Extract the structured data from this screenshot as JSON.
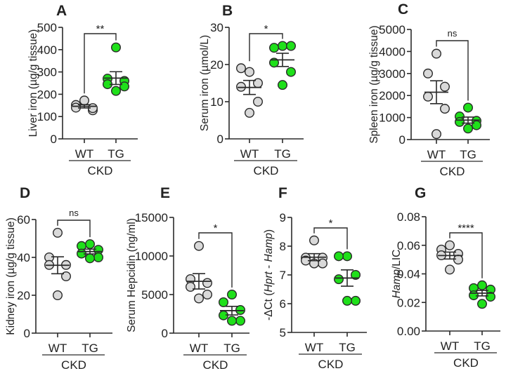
{
  "colors": {
    "wt_fill": "#d9d9d9",
    "tg_fill": "#1fe01a",
    "stroke": "#2a2a2a"
  },
  "chart_data": [
    {
      "type": "scatter",
      "panel": "A",
      "ylabel": [
        {
          "text": "Liver iron (µg/g tissue)",
          "italic": false
        }
      ],
      "ylim": [
        0,
        500
      ],
      "ticks": [
        "0",
        "100",
        "200",
        "300",
        "400",
        "500"
      ],
      "tick_values": [
        0,
        100,
        200,
        300,
        400,
        500
      ],
      "categories": [
        "WT",
        "TG"
      ],
      "group_label": "CKD",
      "significance": "**",
      "series": [
        {
          "name": "WT",
          "values": [
            172,
            152,
            128,
            140,
            138
          ]
        },
        {
          "name": "TG",
          "values": [
            410,
            270,
            260,
            245,
            235,
            215
          ]
        }
      ]
    },
    {
      "type": "scatter",
      "panel": "B",
      "ylabel": [
        {
          "text": "Serum iron (µmol/L)",
          "italic": false
        }
      ],
      "ylim": [
        0,
        30
      ],
      "ticks": [
        "0",
        "10",
        "20",
        "30"
      ],
      "tick_values": [
        0,
        10,
        20,
        30
      ],
      "categories": [
        "WT",
        "TG"
      ],
      "group_label": "CKD",
      "significance": "*",
      "series": [
        {
          "name": "WT",
          "values": [
            18,
            19,
            15,
            14,
            10,
            7
          ]
        },
        {
          "name": "TG",
          "values": [
            25,
            24.5,
            25,
            20.5,
            18,
            14.5
          ]
        }
      ]
    },
    {
      "type": "scatter",
      "panel": "C",
      "ylabel": [
        {
          "text": "Spleen iron (µg/g tissue)",
          "italic": false
        }
      ],
      "ylim": [
        0,
        5000
      ],
      "ticks": [
        "0",
        "1000",
        "2000",
        "3000",
        "4000",
        "5000"
      ],
      "tick_values": [
        0,
        1000,
        2000,
        3000,
        4000,
        5000
      ],
      "categories": [
        "WT",
        "TG"
      ],
      "group_label": "CKD",
      "significance": "ns",
      "series": [
        {
          "name": "WT",
          "values": [
            3900,
            3000,
            2400,
            1950,
            1400,
            250
          ]
        },
        {
          "name": "TG",
          "values": [
            1450,
            1050,
            850,
            800,
            650,
            500
          ]
        }
      ]
    },
    {
      "type": "scatter",
      "panel": "D",
      "ylabel": [
        {
          "text": "Kidney iron (µg/g tissue)",
          "italic": false
        }
      ],
      "ylim": [
        0,
        60
      ],
      "ticks": [
        "0",
        "20",
        "40",
        "60"
      ],
      "tick_values": [
        0,
        20,
        40,
        60
      ],
      "categories": [
        "WT",
        "TG"
      ],
      "group_label": "CKD",
      "significance": "ns",
      "series": [
        {
          "name": "WT",
          "values": [
            53,
            40,
            36,
            36,
            30,
            20
          ]
        },
        {
          "name": "TG",
          "values": [
            47,
            46,
            44,
            42,
            40,
            39.5
          ]
        }
      ]
    },
    {
      "type": "scatter",
      "panel": "E",
      "ylabel": [
        {
          "text": "Serum Hepcidin (ng/ml)",
          "italic": false
        }
      ],
      "ylim": [
        0,
        15000
      ],
      "ticks": [
        "0",
        "5000",
        "10000",
        "15000"
      ],
      "tick_values": [
        0,
        5000,
        10000,
        15000
      ],
      "categories": [
        "WT",
        "TG"
      ],
      "group_label": "CKD",
      "significance": "*",
      "series": [
        {
          "name": "WT",
          "values": [
            11300,
            7000,
            6500,
            6000,
            5000,
            4500
          ]
        },
        {
          "name": "TG",
          "values": [
            5000,
            4000,
            3000,
            2300,
            1600,
            1600
          ]
        }
      ]
    },
    {
      "type": "scatter",
      "panel": "F",
      "ylabel": [
        {
          "text": "-ΔCt (",
          "italic": false
        },
        {
          "text": "Hprt",
          "italic": true
        },
        {
          "text": " - ",
          "italic": false
        },
        {
          "text": "Hamp",
          "italic": true
        },
        {
          "text": ")",
          "italic": false
        }
      ],
      "ylim": [
        5,
        9
      ],
      "ticks": [
        "5",
        "6",
        "7",
        "8",
        "9"
      ],
      "tick_values": [
        5,
        6,
        7,
        8,
        9
      ],
      "categories": [
        "WT",
        "TG"
      ],
      "group_label": "CKD",
      "significance": "*",
      "series": [
        {
          "name": "WT",
          "values": [
            8.2,
            7.6,
            7.6,
            7.5,
            7.4,
            7.4
          ]
        },
        {
          "name": "TG",
          "values": [
            7.65,
            7.65,
            7.0,
            6.85,
            6.1,
            6.1
          ]
        }
      ]
    },
    {
      "type": "scatter",
      "panel": "G",
      "ylabel": [
        {
          "text": "Hamp",
          "italic": true
        },
        {
          "text": "/LIC",
          "italic": false
        }
      ],
      "ylim": [
        0,
        0.08
      ],
      "ticks": [
        "0.00",
        "0.02",
        "0.04",
        "0.06",
        "0.08"
      ],
      "tick_values": [
        0,
        0.02,
        0.04,
        0.06,
        0.08
      ],
      "categories": [
        "WT",
        "TG"
      ],
      "group_label": "CKD",
      "significance": "****",
      "series": [
        {
          "name": "WT",
          "values": [
            0.06,
            0.057,
            0.054,
            0.053,
            0.05,
            0.043
          ]
        },
        {
          "name": "TG",
          "values": [
            0.032,
            0.03,
            0.029,
            0.025,
            0.024,
            0.019
          ]
        }
      ]
    }
  ]
}
